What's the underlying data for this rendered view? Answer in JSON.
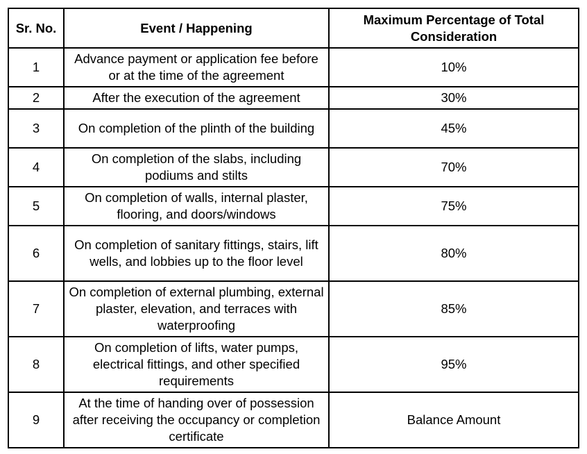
{
  "table": {
    "headers": {
      "sr_no": "Sr. No.",
      "event": "Event / Happening",
      "percentage": "Maximum Percentage of Total Consideration"
    },
    "rows": [
      {
        "sr": "1",
        "event": "Advance payment or application fee before or at the time of the agreement",
        "percentage": "10%"
      },
      {
        "sr": "2",
        "event": "After the execution of the agreement",
        "percentage": "30%"
      },
      {
        "sr": "3",
        "event": "On completion of the plinth of the building",
        "percentage": "45%"
      },
      {
        "sr": "4",
        "event": "On completion of the slabs, including podiums and stilts",
        "percentage": "70%"
      },
      {
        "sr": "5",
        "event": "On completion of walls, internal plaster, flooring, and doors/windows",
        "percentage": "75%"
      },
      {
        "sr": "6",
        "event": "On completion of sanitary fittings, stairs, lift wells, and lobbies up to the floor level",
        "percentage": "80%"
      },
      {
        "sr": "7",
        "event": "On completion of external plumbing, external plaster, elevation, and terraces with waterproofing",
        "percentage": "85%"
      },
      {
        "sr": "8",
        "event": "On completion of lifts, water pumps, electrical fittings, and other specified requirements",
        "percentage": "95%"
      },
      {
        "sr": "9",
        "event": "At the time of handing over of possession after receiving the occupancy or completion certificate",
        "percentage": "Balance Amount"
      }
    ]
  }
}
